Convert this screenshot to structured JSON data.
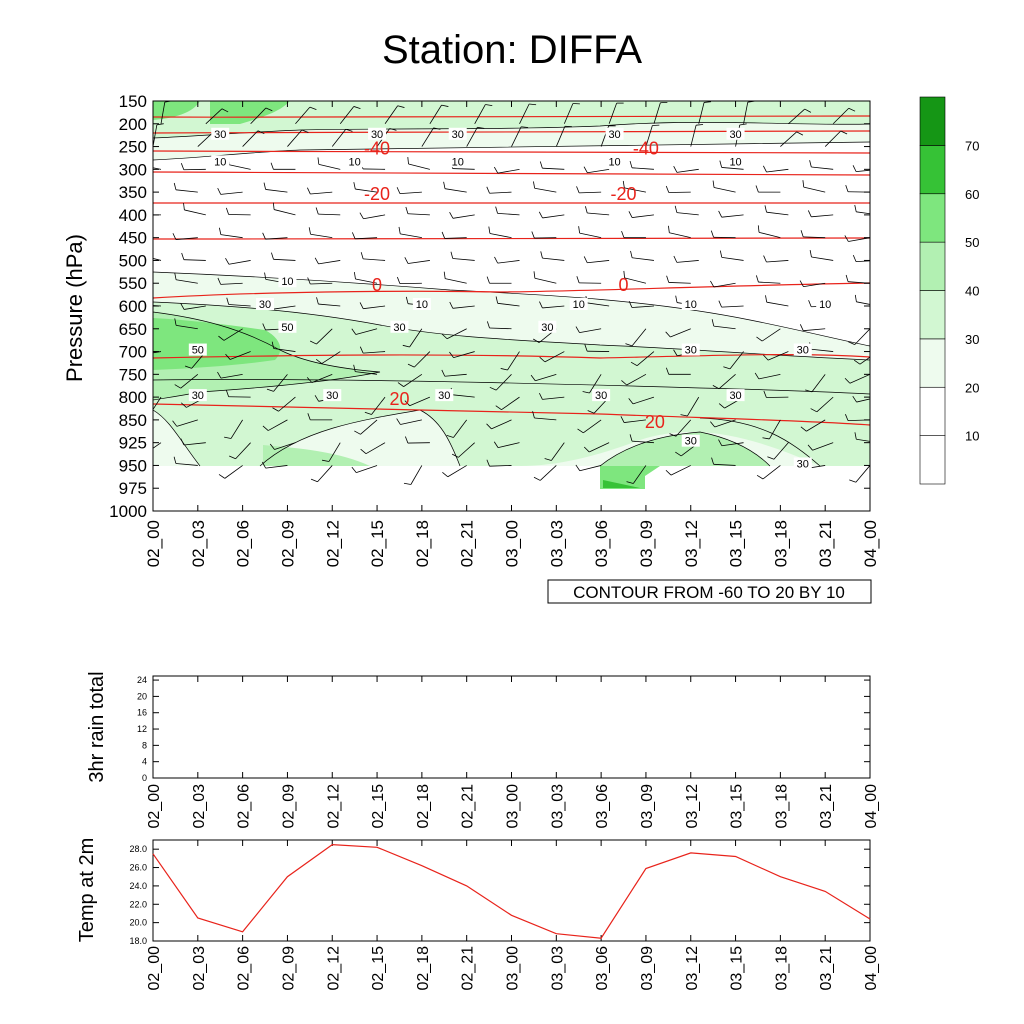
{
  "page": {
    "title": "Station: DIFFA"
  },
  "colors": {
    "temperature_contour": "#e8231b",
    "rh_contour": "#000000",
    "temp_line": "#e8231b",
    "shade_levels": [
      "#ffffff",
      "#ffffff",
      "#eefbee",
      "#d2f7d2",
      "#b2f0b2",
      "#7ee67e",
      "#36c236",
      "#159615"
    ]
  },
  "chart_data": [
    {
      "type": "contour",
      "title": "Station: DIFFA",
      "ylabel": "Pressure (hPa)",
      "xlabel": "",
      "x_ticks": [
        "02_00",
        "02_03",
        "02_06",
        "02_09",
        "02_12",
        "02_15",
        "02_18",
        "02_21",
        "03_00",
        "03_03",
        "03_06",
        "03_09",
        "03_12",
        "03_15",
        "03_18",
        "03_21",
        "04_00"
      ],
      "y_ticks": [
        "150",
        "200",
        "250",
        "300",
        "350",
        "400",
        "450",
        "500",
        "550",
        "600",
        "650",
        "700",
        "750",
        "800",
        "850",
        "925",
        "950",
        "975",
        "1000"
      ],
      "contour_info": "CONTOUR FROM -60 TO 20 BY 10",
      "colorbar": {
        "levels": [
          10,
          20,
          30,
          40,
          50,
          60,
          70
        ]
      },
      "temperature_labels": [
        {
          "text": "-40",
          "x": 5,
          "p": "250"
        },
        {
          "text": "-40",
          "x": 11,
          "p": "250"
        },
        {
          "text": "-20",
          "x": 5,
          "p": "350"
        },
        {
          "text": "-20",
          "x": 10.5,
          "p": "350"
        },
        {
          "text": "0",
          "x": 5,
          "p": "550"
        },
        {
          "text": "0",
          "x": 10.5,
          "p": "550"
        },
        {
          "text": "20",
          "x": 5.5,
          "p": "800"
        },
        {
          "text": "20",
          "x": 11.2,
          "p": "850"
        }
      ],
      "rh_labels": [
        {
          "text": "30",
          "x": 1.5,
          "p": "200"
        },
        {
          "text": "30",
          "x": 5,
          "p": "200"
        },
        {
          "text": "30",
          "x": 6.8,
          "p": "200"
        },
        {
          "text": "30",
          "x": 10.3,
          "p": "200"
        },
        {
          "text": "30",
          "x": 13,
          "p": "200"
        },
        {
          "text": "10",
          "x": 1.5,
          "p": "300"
        },
        {
          "text": "10",
          "x": 4.5,
          "p": "300"
        },
        {
          "text": "10",
          "x": 6.8,
          "p": "300"
        },
        {
          "text": "10",
          "x": 10.3,
          "p": "300"
        },
        {
          "text": "10",
          "x": 13,
          "p": "300"
        },
        {
          "text": "10",
          "x": 3,
          "p": "550"
        },
        {
          "text": "10",
          "x": 6,
          "p": "600"
        },
        {
          "text": "10",
          "x": 9.5,
          "p": "600"
        },
        {
          "text": "10",
          "x": 12,
          "p": "600"
        },
        {
          "text": "10",
          "x": 15,
          "p": "600"
        },
        {
          "text": "30",
          "x": 2.5,
          "p": "600"
        },
        {
          "text": "50",
          "x": 3,
          "p": "650"
        },
        {
          "text": "30",
          "x": 5.5,
          "p": "650"
        },
        {
          "text": "30",
          "x": 8.8,
          "p": "650"
        },
        {
          "text": "50",
          "x": 1,
          "p": "700"
        },
        {
          "text": "30",
          "x": 12,
          "p": "700"
        },
        {
          "text": "30",
          "x": 14.5,
          "p": "700"
        },
        {
          "text": "30",
          "x": 4,
          "p": "800"
        },
        {
          "text": "30",
          "x": 6.5,
          "p": "800"
        },
        {
          "text": "30",
          "x": 10,
          "p": "800"
        },
        {
          "text": "30",
          "x": 13,
          "p": "800"
        },
        {
          "text": "30",
          "x": 1,
          "p": "800"
        },
        {
          "text": "30",
          "x": 12,
          "p": "925"
        },
        {
          "text": "30",
          "x": 14.5,
          "p": "950"
        }
      ]
    },
    {
      "type": "line",
      "ylabel": "3hr rain total",
      "x": [
        "02_00",
        "02_03",
        "02_06",
        "02_09",
        "02_12",
        "02_15",
        "02_18",
        "02_21",
        "03_00",
        "03_03",
        "03_06",
        "03_09",
        "03_12",
        "03_15",
        "03_18",
        "03_21",
        "04_00"
      ],
      "y_ticks": [
        "0",
        "4",
        "8",
        "12",
        "16",
        "20",
        "24"
      ],
      "ylim": [
        0,
        25
      ],
      "values": [
        0,
        0,
        0,
        0,
        0,
        0,
        0,
        0,
        0,
        0,
        0,
        0,
        0,
        0,
        0,
        0,
        0
      ]
    },
    {
      "type": "line",
      "ylabel": "Temp at 2m",
      "x": [
        "02_00",
        "02_03",
        "02_06",
        "02_09",
        "02_12",
        "02_15",
        "02_18",
        "02_21",
        "03_00",
        "03_03",
        "03_06",
        "03_09",
        "03_12",
        "03_15",
        "03_18",
        "03_21",
        "04_00"
      ],
      "y_ticks": [
        "18.0",
        "20.0",
        "22.0",
        "24.0",
        "26.0",
        "28.0"
      ],
      "ylim": [
        18.0,
        29.0
      ],
      "values": [
        27.5,
        20.5,
        19.0,
        25.0,
        28.5,
        28.2,
        26.2,
        24.0,
        20.8,
        18.8,
        18.3,
        25.9,
        27.6,
        27.2,
        25.0,
        23.4,
        20.4
      ]
    }
  ]
}
